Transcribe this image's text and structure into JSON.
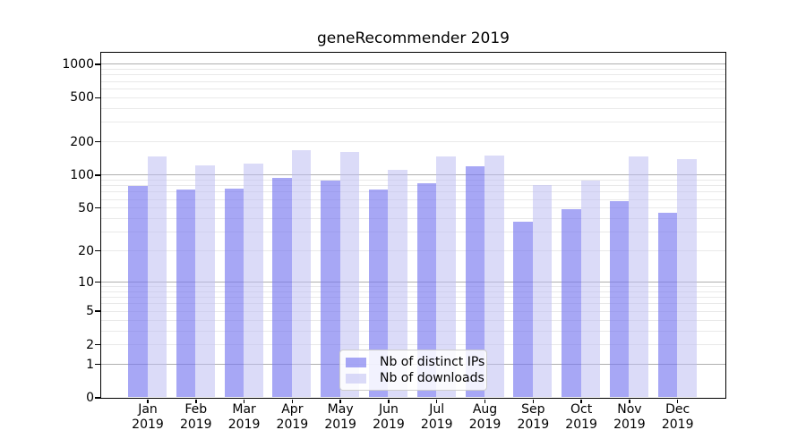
{
  "title": "geneRecommender 2019",
  "chart_data": {
    "type": "bar",
    "title": "geneRecommender 2019",
    "xlabel": "",
    "ylabel": "",
    "categories": [
      "Jan 2019",
      "Feb 2019",
      "Mar 2019",
      "Apr 2019",
      "May 2019",
      "Jun 2019",
      "Jul 2019",
      "Aug 2019",
      "Sep 2019",
      "Oct 2019",
      "Nov 2019",
      "Dec 2019"
    ],
    "series": [
      {
        "name": "Nb of distinct IPs",
        "color": "rgba(120,120,240,0.65)",
        "values": [
          79,
          73,
          74,
          94,
          88,
          73,
          83,
          118,
          37,
          48,
          57,
          45
        ]
      },
      {
        "name": "Nb of downloads",
        "color": "rgba(190,190,243,0.55)",
        "values": [
          146,
          121,
          126,
          166,
          160,
          110,
          146,
          150,
          81,
          89,
          145,
          137
        ]
      }
    ],
    "yscale": "log(value+1)",
    "ylim": [
      0,
      1271
    ],
    "yticks": [
      0,
      1,
      2,
      5,
      10,
      20,
      50,
      100,
      200,
      500,
      1000
    ],
    "major_grid_values": [
      1,
      10,
      100,
      1000
    ],
    "minor_grid_values": [
      2,
      3,
      4,
      5,
      6,
      7,
      8,
      9,
      20,
      30,
      40,
      50,
      60,
      70,
      80,
      90,
      200,
      300,
      400,
      500,
      600,
      700,
      800,
      900
    ],
    "grid": true,
    "legend_position": "lower center",
    "colors": {
      "bar_distinct_ips": "rgba(120,120,240,0.65)",
      "bar_downloads": "rgba(190,190,243,0.55)",
      "major_grid": "#b0b0b0",
      "minor_grid": "#e9e9e9",
      "axis": "#000000",
      "legend_border": "#cccccc"
    }
  },
  "legend": {
    "items": [
      {
        "label": "Nb of distinct IPs"
      },
      {
        "label": "Nb of downloads"
      }
    ]
  }
}
